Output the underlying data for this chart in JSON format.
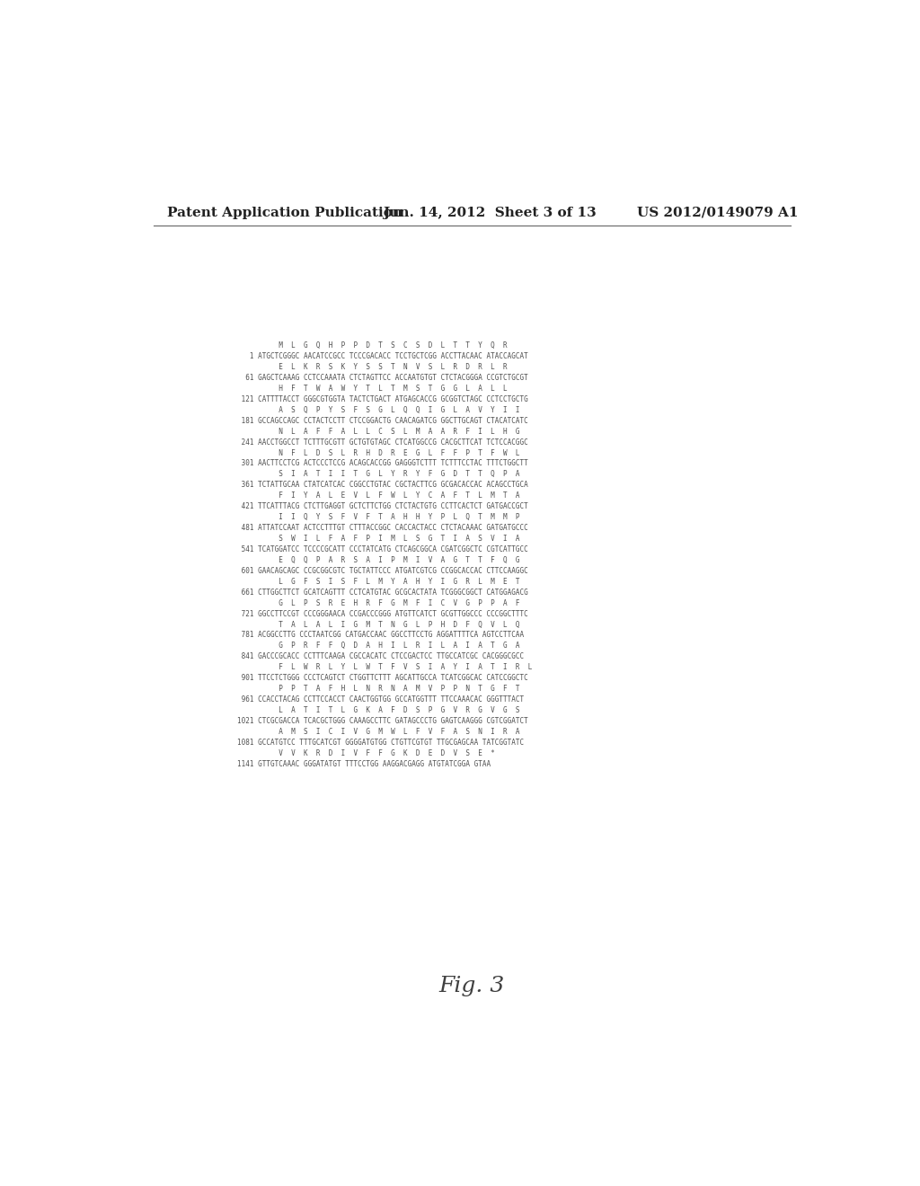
{
  "header_left": "Patent Application Publication",
  "header_center": "Jun. 14, 2012  Sheet 3 of 13",
  "header_right": "US 2012/0149079 A1",
  "figure_label": "Fig. 3",
  "background_color": "#ffffff",
  "text_color": "#404040",
  "header_color": "#222222",
  "seq_text_color": "#505050",
  "sequence_lines": [
    "          M  L  G  Q  H  P  P  D  T  S  C  S  D  L  T  T  Y  Q  R",
    "   1 ATGCTCGGGC AACATCCGCC TCCCGACACC TCCTGCTCGG ACCTTACAAC ATACCAGCAT",
    "          E  L  K  R  S  K  Y  S  S  T  N  V  S  L  R  D  R  L  R",
    "  61 GAGCTCAAAG CCTCCAAATA CTCTAGTTCC ACCAATGTGT CTCTACGGGA CCGTCTGCGT",
    "          H  F  T  W  A  W  Y  T  L  T  M  S  T  G  G  L  A  L  L",
    " 121 CATTTTACCT GGGCGTGGTA TACTCTGACT ATGAGCACCG GCGGTCTAGC CCTCCTGCTG",
    "          A  S  Q  P  Y  S  F  S  G  L  Q  Q  I  G  L  A  V  Y  I  I",
    " 181 GCCAGCCAGC CCTACTCCTT CTCCGGACTG CAACAGATCG GGCTTGCAGT CTACATCATC",
    "          N  L  A  F  F  A  L  L  C  S  L  M  A  A  R  F  I  L  H  G",
    " 241 AACCTGGCCT TCTTTGCGTT GCTGTGTAGC CTCATGGCCG CACGCTTCAT TCTCCACGGC",
    "          N  F  L  D  S  L  R  H  D  R  E  G  L  F  F  P  T  F  W  L",
    " 301 AACTTCCTCG ACTCCCTCCG ACAGCACCGG GAGGGTCTTT TCTTTCCTAC TTTCTGGCTT",
    "          S  I  A  T  I  I  T  G  L  Y  R  Y  F  G  D  T  T  Q  P  A",
    " 361 TCTATTGCAA CTATCATCAC CGGCCTGTAC CGCTACTTCG GCGACACCAC ACAGCCTGCA",
    "          F  I  Y  A  L  E  V  L  F  W  L  Y  C  A  F  T  L  M  T  A",
    " 421 TTCATTTACG CTCTTGAGGT GCTCTTCTGG CTCTACTGTG CCTTCACTCT GATGACCGCT",
    "          I  I  Q  Y  S  F  V  F  T  A  H  H  Y  P  L  Q  T  M  M  P",
    " 481 ATTATCCAAT ACTCCTTTGT CTTTACCGGC CACCACTACC CTCTACAAAC GATGATGCCC",
    "          S  W  I  L  F  A  F  P  I  M  L  S  G  T  I  A  S  V  I  A",
    " 541 TCATGGATCC TCCCCGCATT CCCTATCATG CTCAGCGGCA CGATCGGCTC CGTCATTGCC",
    "          E  Q  Q  P  A  R  S  A  I  P  M  I  V  A  G  T  T  F  Q  G",
    " 601 GAACAGCAGC CCGCGGCGTC TGCTATTCCC ATGATCGTCG CCGGCACCAC CTTCCAAGGC",
    "          L  G  F  S  I  S  F  L  M  Y  A  H  Y  I  G  R  L  M  E  T",
    " 661 CTTGGCTTCT GCATCAGTTT CCTCATGTAC GCGCACTATA TCGGGCGGCT CATGGAGACG",
    "          G  L  P  S  R  E  H  R  F  G  M  F  I  C  V  G  P  P  A  F",
    " 721 GGCCTTCCGT CCCGGGAACA CCGACCCGGG ATGTTCATCT GCGTTGGCCC CCCGGCTTTC",
    "          T  A  L  A  L  I  G  M  T  N  G  L  P  H  D  F  Q  V  L  Q",
    " 781 ACGGCCTTG CCCTAATCGG CATGACCAAC GGCCTTCCTG AGGATTTTCA AGTCCTTCAA",
    "          G  P  R  F  F  Q  D  A  H  I  L  R  I  L  A  I  A  T  G  A",
    " 841 GACCCGCACC CCTTTCAAGA CGCCACATC CTCCGACTCC TTGCCATCGC CACGGGCGCC",
    "          F  L  W  R  L  Y  L  W  T  F  V  S  I  A  Y  I  A  T  I  R  L",
    " 901 TTCCTCTGGG CCCTCAGTCT CTGGTTCTTT AGCATTGCCA TCATCGGCAC CATCCGGCTC",
    "          P  P  T  A  F  H  L  N  R  N  A  M  V  P  P  N  T  G  F  T",
    " 961 CCACCTACAG CCTTCCACCT CAACTGGTGG GCCATGGTTT TTCCAAACAC GGGTTTACT",
    "          L  A  T  I  T  L  G  K  A  F  D  S  P  G  V  R  G  V  G  S",
    "1021 CTCGCGACCA TCACGCTGGG CAAAGCCTTC GATAGCCCTG GAGTCAAGGG CGTCGGATCT",
    "          A  M  S  I  C  I  V  G  M  W  L  F  V  F  A  S  N  I  R  A",
    "1081 GCCATGTCC TTTGCATCGT GGGGATGTGG CTGTTCGTGT TTGCGAGCAA TATCGGTATC",
    "          V  V  K  R  D  I  V  F  F  G  K  D  E  D  V  S  E  *",
    "1141 GTTGTCAAAC GGGATATGT TTTCCTGG AAGGACGAGG ATGTATCGGA GTAA"
  ]
}
